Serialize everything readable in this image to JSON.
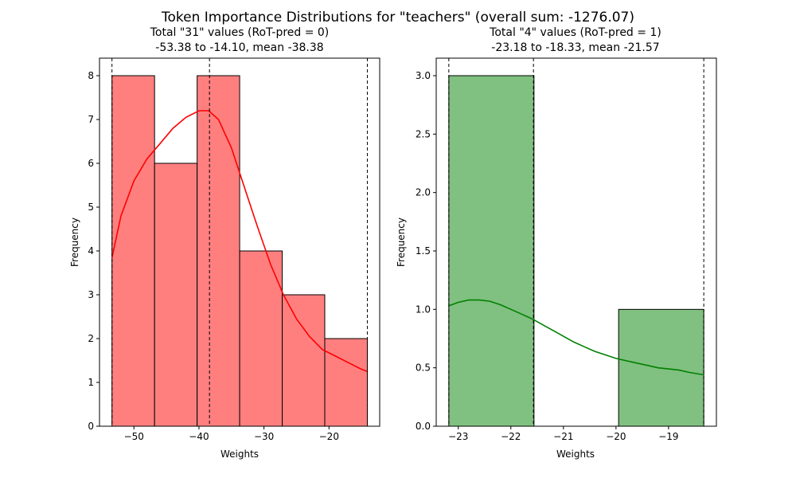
{
  "figure": {
    "suptitle": "Token Importance Distributions for \"teachers\" (overall  sum: -1276.07)"
  },
  "chart_data": [
    {
      "type": "histogram",
      "title_line1": "Total \"31\" values (RoT-pred = 0)",
      "title_line2": "-53.38 to -14.10, mean -38.38",
      "xlabel": "Weights",
      "ylabel": "Frequency",
      "xlim": [
        -55.3,
        -12.2
      ],
      "ylim": [
        0,
        8.4
      ],
      "xticks": [
        -50,
        -40,
        -30,
        -20
      ],
      "xtick_labels": [
        "−50",
        "−40",
        "−30",
        "−20"
      ],
      "yticks": [
        0,
        1,
        2,
        3,
        4,
        5,
        6,
        7,
        8
      ],
      "ytick_labels": [
        "0",
        "1",
        "2",
        "3",
        "4",
        "5",
        "6",
        "7",
        "8"
      ],
      "bar_color": "#ff7f7f",
      "kde_color": "#ff0000",
      "bins": [
        {
          "x0": -53.38,
          "x1": -46.83,
          "count": 8
        },
        {
          "x0": -46.83,
          "x1": -40.28,
          "count": 6
        },
        {
          "x0": -40.28,
          "x1": -33.74,
          "count": 8
        },
        {
          "x0": -33.74,
          "x1": -27.19,
          "count": 4
        },
        {
          "x0": -27.19,
          "x1": -20.65,
          "count": 3
        },
        {
          "x0": -20.65,
          "x1": -14.1,
          "count": 2
        }
      ],
      "kde": {
        "x": [
          -53.38,
          -52,
          -50,
          -48,
          -46,
          -44,
          -42,
          -40,
          -38.5,
          -37,
          -35,
          -33,
          -31,
          -29,
          -27,
          -25,
          -23,
          -21,
          -19,
          -17,
          -15,
          -14.1
        ],
        "y": [
          3.85,
          4.8,
          5.6,
          6.1,
          6.45,
          6.8,
          7.05,
          7.2,
          7.2,
          7.0,
          6.35,
          5.45,
          4.55,
          3.7,
          3.0,
          2.45,
          2.05,
          1.75,
          1.6,
          1.45,
          1.3,
          1.25
        ]
      },
      "vlines": [
        -53.38,
        -38.38,
        -14.1
      ]
    },
    {
      "type": "histogram",
      "title_line1": "Total \"4\" values (RoT-pred = 1)",
      "title_line2": "-23.18 to -18.33, mean -21.57",
      "xlabel": "Weights",
      "ylabel": "Frequency",
      "xlim": [
        -23.42,
        -18.09
      ],
      "ylim": [
        0,
        3.15
      ],
      "xticks": [
        -23,
        -22,
        -21,
        -20,
        -19
      ],
      "xtick_labels": [
        "−23",
        "−22",
        "−21",
        "−20",
        "−19"
      ],
      "yticks": [
        0,
        0.5,
        1.0,
        1.5,
        2.0,
        2.5,
        3.0
      ],
      "ytick_labels": [
        "0.0",
        "0.5",
        "1.0",
        "1.5",
        "2.0",
        "2.5",
        "3.0"
      ],
      "bar_color": "#80c080",
      "kde_color": "#008000",
      "bins": [
        {
          "x0": -23.18,
          "x1": -21.56,
          "count": 3
        },
        {
          "x0": -21.56,
          "x1": -19.95,
          "count": 0
        },
        {
          "x0": -19.95,
          "x1": -18.33,
          "count": 1
        }
      ],
      "kde": {
        "x": [
          -23.18,
          -23.0,
          -22.8,
          -22.6,
          -22.4,
          -22.2,
          -22.0,
          -21.8,
          -21.6,
          -21.4,
          -21.2,
          -21.0,
          -20.8,
          -20.6,
          -20.4,
          -20.2,
          -20.0,
          -19.8,
          -19.6,
          -19.4,
          -19.2,
          -19.0,
          -18.8,
          -18.6,
          -18.33
        ],
        "y": [
          1.03,
          1.06,
          1.08,
          1.08,
          1.07,
          1.04,
          1.0,
          0.96,
          0.92,
          0.87,
          0.82,
          0.77,
          0.72,
          0.68,
          0.64,
          0.61,
          0.58,
          0.56,
          0.54,
          0.52,
          0.5,
          0.49,
          0.48,
          0.46,
          0.44
        ]
      },
      "vlines": [
        -23.18,
        -21.57,
        -18.33
      ]
    }
  ]
}
